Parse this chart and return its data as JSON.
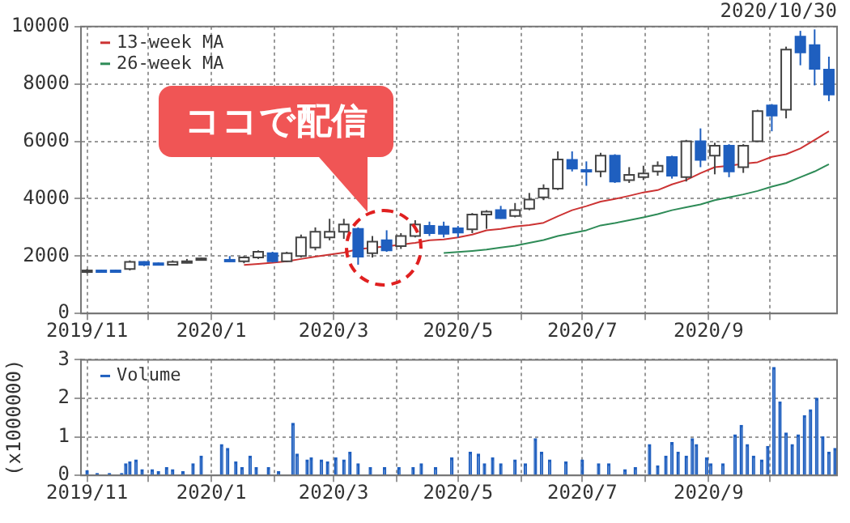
{
  "chart_data": [
    {
      "type": "candlestick",
      "subtitle": "2020/10/30",
      "x": [
        "2019-11-01",
        "2019-11-08",
        "2019-11-15",
        "2019-11-22",
        "2019-11-29",
        "2019-12-06",
        "2019-12-13",
        "2019-12-20",
        "2019-12-27",
        "2020-01-10",
        "2020-01-17",
        "2020-01-24",
        "2020-01-31",
        "2020-02-07",
        "2020-02-14",
        "2020-02-21",
        "2020-02-28",
        "2020-03-06",
        "2020-03-13",
        "2020-03-20",
        "2020-03-27",
        "2020-04-03",
        "2020-04-10",
        "2020-04-17",
        "2020-04-24",
        "2020-05-01",
        "2020-05-08",
        "2020-05-15",
        "2020-05-22",
        "2020-05-29",
        "2020-06-05",
        "2020-06-12",
        "2020-06-19",
        "2020-06-26",
        "2020-07-03",
        "2020-07-10",
        "2020-07-17",
        "2020-07-24",
        "2020-07-31",
        "2020-08-07",
        "2020-08-14",
        "2020-08-21",
        "2020-08-28",
        "2020-09-04",
        "2020-09-11",
        "2020-09-18",
        "2020-09-25",
        "2020-10-02",
        "2020-10-09",
        "2020-10-16",
        "2020-10-23",
        "2020-10-30"
      ],
      "ohlc": [
        [
          1450,
          1550,
          1400,
          1500
        ],
        [
          1500,
          1530,
          1450,
          1480
        ],
        [
          1500,
          1530,
          1460,
          1490
        ],
        [
          1550,
          1850,
          1500,
          1800
        ],
        [
          1800,
          1820,
          1650,
          1700
        ],
        [
          1750,
          1780,
          1680,
          1700
        ],
        [
          1700,
          1850,
          1680,
          1800
        ],
        [
          1800,
          1900,
          1750,
          1820
        ],
        [
          1880,
          1950,
          1850,
          1920
        ],
        [
          1870,
          2000,
          1800,
          1850
        ],
        [
          1820,
          2000,
          1750,
          1950
        ],
        [
          1950,
          2200,
          1900,
          2150
        ],
        [
          2100,
          2150,
          1780,
          1820
        ],
        [
          1820,
          2150,
          1800,
          2100
        ],
        [
          2000,
          2750,
          1950,
          2650
        ],
        [
          2300,
          3000,
          2200,
          2850
        ],
        [
          2650,
          3300,
          2550,
          2850
        ],
        [
          2850,
          3300,
          2600,
          3100
        ],
        [
          2950,
          3000,
          1700,
          1980
        ],
        [
          2100,
          2700,
          1950,
          2500
        ],
        [
          2550,
          2900,
          2150,
          2200
        ],
        [
          2350,
          2800,
          2250,
          2700
        ],
        [
          2700,
          3250,
          2650,
          3100
        ],
        [
          3050,
          3200,
          2700,
          2800
        ],
        [
          3030,
          3200,
          2650,
          2780
        ],
        [
          2970,
          3050,
          2650,
          2820
        ],
        [
          2930,
          3500,
          2800,
          3450
        ],
        [
          3450,
          3600,
          2950,
          3550
        ],
        [
          3600,
          3750,
          3300,
          3320
        ],
        [
          3400,
          3850,
          3350,
          3600
        ],
        [
          3650,
          4200,
          3600,
          3970
        ],
        [
          4050,
          4500,
          3950,
          4350
        ],
        [
          4350,
          5650,
          4300,
          5370
        ],
        [
          5350,
          5650,
          4950,
          5050
        ],
        [
          5000,
          5300,
          4450,
          4950
        ],
        [
          4950,
          5600,
          4750,
          5500
        ],
        [
          5500,
          5550,
          4550,
          4600
        ],
        [
          4650,
          5100,
          4550,
          4830
        ],
        [
          4750,
          5150,
          4650,
          4880
        ],
        [
          4950,
          5300,
          4800,
          5150
        ],
        [
          5450,
          5500,
          4700,
          4800
        ],
        [
          4750,
          6050,
          4600,
          6000
        ],
        [
          6000,
          6450,
          5100,
          5350
        ],
        [
          5500,
          5950,
          4850,
          5850
        ],
        [
          5850,
          5900,
          4750,
          4950
        ],
        [
          5100,
          5900,
          4900,
          5850
        ],
        [
          6000,
          7100,
          6000,
          7050
        ],
        [
          7250,
          7300,
          6350,
          6900
        ],
        [
          7100,
          9300,
          6800,
          9200
        ],
        [
          9650,
          9850,
          8650,
          9100
        ],
        [
          9350,
          9900,
          7950,
          8530
        ],
        [
          8500,
          8950,
          7400,
          7630
        ]
      ],
      "series": [
        {
          "name": "13-week MA",
          "type": "line",
          "color": "#cc3333",
          "x": [
            "2020-01-17",
            "2020-01-24",
            "2020-01-31",
            "2020-02-07",
            "2020-02-14",
            "2020-02-21",
            "2020-02-28",
            "2020-03-06",
            "2020-03-13",
            "2020-03-20",
            "2020-03-27",
            "2020-04-03",
            "2020-04-10",
            "2020-04-17",
            "2020-04-24",
            "2020-05-01",
            "2020-05-08",
            "2020-05-15",
            "2020-05-22",
            "2020-05-29",
            "2020-06-05",
            "2020-06-12",
            "2020-06-19",
            "2020-06-26",
            "2020-07-03",
            "2020-07-10",
            "2020-07-17",
            "2020-07-24",
            "2020-07-31",
            "2020-08-07",
            "2020-08-14",
            "2020-08-21",
            "2020-08-28",
            "2020-09-04",
            "2020-09-11",
            "2020-09-18",
            "2020-09-25",
            "2020-10-02",
            "2020-10-09",
            "2020-10-16",
            "2020-10-23",
            "2020-10-30"
          ],
          "values": [
            1690,
            1730,
            1770,
            1820,
            1900,
            1980,
            2050,
            2120,
            2240,
            2290,
            2340,
            2400,
            2460,
            2550,
            2580,
            2650,
            2750,
            2900,
            2950,
            3030,
            3080,
            3160,
            3390,
            3600,
            3740,
            3900,
            3990,
            4100,
            4220,
            4300,
            4500,
            4650,
            4890,
            5100,
            5150,
            5220,
            5270,
            5460,
            5550,
            5750,
            6050,
            6350
          ]
        },
        {
          "name": "26-week MA",
          "type": "line",
          "color": "#2e8b57",
          "x": [
            "2020-04-24",
            "2020-05-01",
            "2020-05-08",
            "2020-05-15",
            "2020-05-22",
            "2020-05-29",
            "2020-06-05",
            "2020-06-12",
            "2020-06-19",
            "2020-06-26",
            "2020-07-03",
            "2020-07-10",
            "2020-07-17",
            "2020-07-24",
            "2020-07-31",
            "2020-08-07",
            "2020-08-14",
            "2020-08-21",
            "2020-08-28",
            "2020-09-04",
            "2020-09-11",
            "2020-09-18",
            "2020-09-25",
            "2020-10-02",
            "2020-10-09",
            "2020-10-16",
            "2020-10-23",
            "2020-10-30"
          ],
          "values": [
            2110,
            2140,
            2180,
            2230,
            2300,
            2360,
            2460,
            2560,
            2700,
            2800,
            2900,
            3070,
            3150,
            3250,
            3350,
            3460,
            3600,
            3700,
            3800,
            3950,
            4050,
            4150,
            4270,
            4420,
            4550,
            4750,
            4950,
            5200
          ]
        }
      ],
      "xlim": [
        "2019-10-29",
        "2020-11-03"
      ],
      "xticks": [
        {
          "value": "2019-11-01",
          "label": "2019/11"
        },
        {
          "value": "2019-12-01",
          "label": null
        },
        {
          "value": "2020-01-01",
          "label": "2020/1"
        },
        {
          "value": "2020-02-01",
          "label": null
        },
        {
          "value": "2020-03-01",
          "label": "2020/3"
        },
        {
          "value": "2020-04-01",
          "label": null
        },
        {
          "value": "2020-05-01",
          "label": "2020/5"
        },
        {
          "value": "2020-06-01",
          "label": null
        },
        {
          "value": "2020-07-01",
          "label": "2020/7"
        },
        {
          "value": "2020-08-01",
          "label": null
        },
        {
          "value": "2020-09-01",
          "label": "2020/9"
        },
        {
          "value": "2020-10-01",
          "label": null
        }
      ],
      "ylim": [
        0,
        10000
      ],
      "yticks": [
        0,
        2000,
        4000,
        6000,
        8000,
        10000
      ],
      "grid": true,
      "legend": "top left",
      "annotations": [
        "ココで配信"
      ]
    },
    {
      "type": "bar",
      "ylabel": "(x1000000)",
      "x": [
        "2019-11-01",
        "2019-11-06",
        "2019-11-12",
        "2019-11-18",
        "2019-11-20",
        "2019-11-22",
        "2019-11-25",
        "2019-11-28",
        "2019-12-03",
        "2019-12-06",
        "2019-12-10",
        "2019-12-13",
        "2019-12-18",
        "2019-12-23",
        "2019-12-27",
        "2020-01-06",
        "2020-01-09",
        "2020-01-13",
        "2020-01-16",
        "2020-01-20",
        "2020-01-23",
        "2020-01-29",
        "2020-02-03",
        "2020-02-10",
        "2020-02-12",
        "2020-02-17",
        "2020-02-19",
        "2020-02-24",
        "2020-02-27",
        "2020-03-02",
        "2020-03-06",
        "2020-03-09",
        "2020-03-13",
        "2020-03-19",
        "2020-03-26",
        "2020-04-02",
        "2020-04-09",
        "2020-04-13",
        "2020-04-20",
        "2020-04-28",
        "2020-05-07",
        "2020-05-11",
        "2020-05-14",
        "2020-05-18",
        "2020-05-22",
        "2020-05-29",
        "2020-06-03",
        "2020-06-08",
        "2020-06-11",
        "2020-06-15",
        "2020-06-23",
        "2020-07-01",
        "2020-07-09",
        "2020-07-14",
        "2020-07-22",
        "2020-07-27",
        "2020-08-03",
        "2020-08-07",
        "2020-08-11",
        "2020-08-14",
        "2020-08-17",
        "2020-08-21",
        "2020-08-24",
        "2020-08-26",
        "2020-08-31",
        "2020-09-02",
        "2020-09-08",
        "2020-09-14",
        "2020-09-17",
        "2020-09-20",
        "2020-09-23",
        "2020-09-27",
        "2020-09-30",
        "2020-10-03",
        "2020-10-06",
        "2020-10-09",
        "2020-10-12",
        "2020-10-15",
        "2020-10-18",
        "2020-10-21",
        "2020-10-24",
        "2020-10-27",
        "2020-10-30",
        "2020-11-02"
      ],
      "series": [
        {
          "name": "Volume",
          "color": "#1f5fbf",
          "values": [
            0.12,
            0.05,
            0.05,
            0.05,
            0.3,
            0.35,
            0.4,
            0.15,
            0.15,
            0.1,
            0.2,
            0.15,
            0.1,
            0.3,
            0.5,
            0.8,
            0.7,
            0.35,
            0.2,
            0.5,
            0.2,
            0.2,
            0.1,
            1.35,
            0.55,
            0.4,
            0.45,
            0.4,
            0.35,
            0.45,
            0.4,
            0.6,
            0.3,
            0.2,
            0.2,
            0.2,
            0.2,
            0.3,
            0.2,
            0.45,
            0.6,
            0.55,
            0.3,
            0.45,
            0.3,
            0.4,
            0.3,
            0.95,
            0.6,
            0.4,
            0.35,
            0.4,
            0.3,
            0.3,
            0.15,
            0.2,
            0.8,
            0.25,
            0.5,
            0.85,
            0.6,
            0.5,
            0.95,
            0.8,
            0.45,
            0.3,
            0.3,
            1.05,
            1.3,
            0.8,
            0.5,
            0.4,
            0.75,
            2.8,
            1.9,
            1.1,
            0.8,
            1.05,
            1.55,
            1.7,
            2.0,
            1.0,
            0.6,
            0.7
          ]
        }
      ],
      "xlim": [
        "2019-10-29",
        "2020-11-03"
      ],
      "xticks": [
        {
          "value": "2019-11-01",
          "label": "2019/11"
        },
        {
          "value": "2019-12-01",
          "label": null
        },
        {
          "value": "2020-01-01",
          "label": "2020/1"
        },
        {
          "value": "2020-02-01",
          "label": null
        },
        {
          "value": "2020-03-01",
          "label": "2020/3"
        },
        {
          "value": "2020-04-01",
          "label": null
        },
        {
          "value": "2020-05-01",
          "label": "2020/5"
        },
        {
          "value": "2020-06-01",
          "label": null
        },
        {
          "value": "2020-07-01",
          "label": "2020/7"
        },
        {
          "value": "2020-08-01",
          "label": null
        },
        {
          "value": "2020-09-01",
          "label": "2020/9"
        },
        {
          "value": "2020-10-01",
          "label": null
        }
      ],
      "ylim": [
        0,
        3
      ],
      "yticks": [
        0,
        1,
        2,
        3
      ],
      "grid": true,
      "legend": "top left"
    }
  ]
}
